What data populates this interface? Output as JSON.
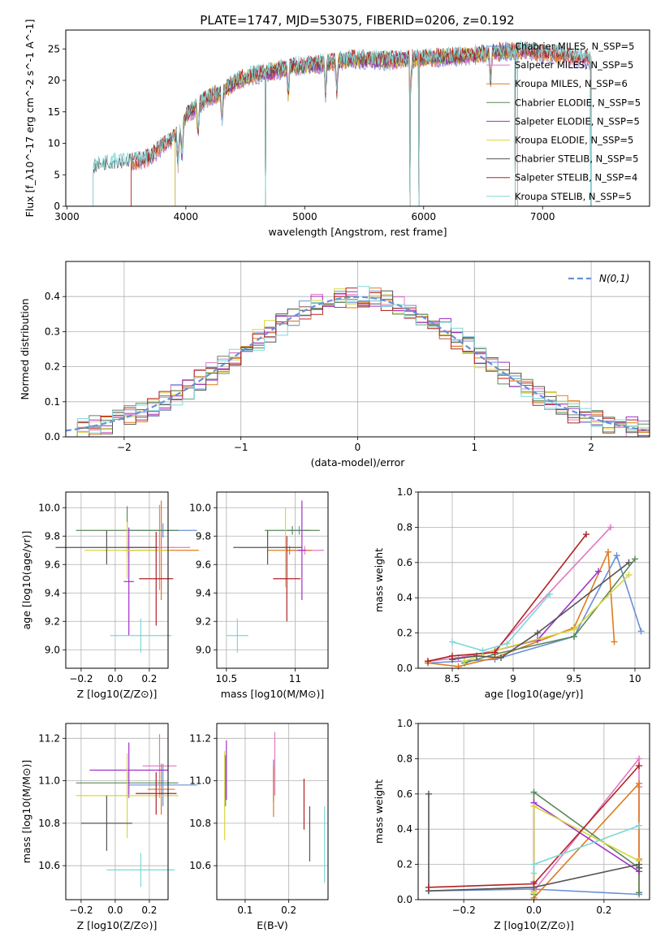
{
  "figure": {
    "title": "PLATE=1747, MJD=53075, FIBERID=0206, z=0.192",
    "colors": {
      "chabrier_miles": "#6a8fd6",
      "salpeter_miles": "#e377c2",
      "kroupa_miles": "#e07b1d",
      "chabrier_elodie": "#5a8a5a",
      "salpeter_elodie": "#a030c8",
      "kroupa_elodie": "#d7d742",
      "chabrier_stelib": "#555555",
      "salpeter_stelib": "#b22222",
      "kroupa_stelib": "#7fd7d7",
      "gaussian": "#6a8fd6"
    }
  },
  "chart_data": [
    {
      "id": "spectrum",
      "type": "line",
      "xlabel": "wavelength [Angstrom, rest frame]",
      "ylabel": "Flux [f_λ10^-17 erg cm^-2 s^-1 A^-1]",
      "xlim": [
        2990,
        7900
      ],
      "ylim": [
        0,
        28
      ],
      "xticks": [
        3000,
        4000,
        5000,
        6000,
        7000
      ],
      "yticks": [
        0,
        5,
        10,
        15,
        20,
        25
      ],
      "legend_position": "right",
      "legend": [
        {
          "label": "Chabrier MILES, N_SSP=5",
          "color": "#6a8fd6"
        },
        {
          "label": "Salpeter MILES, N_SSP=5",
          "color": "#e377c2"
        },
        {
          "label": "Kroupa MILES, N_SSP=6",
          "color": "#e07b1d"
        },
        {
          "label": "Chabrier ELODIE, N_SSP=5",
          "color": "#5a8a5a"
        },
        {
          "label": "Salpeter ELODIE, N_SSP=5",
          "color": "#a030c8"
        },
        {
          "label": "Kroupa ELODIE, N_SSP=5",
          "color": "#d7d742"
        },
        {
          "label": "Chabrier STELIB, N_SSP=5",
          "color": "#555555"
        },
        {
          "label": "Salpeter STELIB, N_SSP=4",
          "color": "#b22222"
        },
        {
          "label": "Kroupa STELIB, N_SSP=5",
          "color": "#7fd7d7"
        }
      ],
      "continuum": {
        "x": [
          3220,
          3300,
          3400,
          3500,
          3600,
          3700,
          3800,
          3900,
          3950,
          4000,
          4100,
          4200,
          4300,
          4400,
          4500,
          4600,
          4700,
          4800,
          4900,
          5000,
          5200,
          5400,
          5600,
          5800,
          6000,
          6200,
          6400,
          6600,
          6800,
          7000,
          7200,
          7400,
          7600
        ],
        "y": [
          6.0,
          6.6,
          6.9,
          7.0,
          7.2,
          7.8,
          9.5,
          11.0,
          11.5,
          14.5,
          16.0,
          17.5,
          18.0,
          19.5,
          20.5,
          21.0,
          21.3,
          21.8,
          22.2,
          22.3,
          22.8,
          23.4,
          23.2,
          23.3,
          23.5,
          23.7,
          24.0,
          24.5,
          24.8,
          24.4,
          24.0,
          23.3,
          22.5
        ]
      },
      "model_ranges": [
        {
          "name": "Chabrier MILES",
          "color": "#6a8fd6",
          "start": 3540,
          "end": 7410
        },
        {
          "name": "Salpeter MILES",
          "color": "#e377c2",
          "start": 3540,
          "end": 7410
        },
        {
          "name": "Kroupa MILES",
          "color": "#e07b1d",
          "start": 3540,
          "end": 7410
        },
        {
          "name": "Chabrier ELODIE",
          "color": "#5a8a5a",
          "start": 3910,
          "end": 6790
        },
        {
          "name": "Salpeter ELODIE",
          "color": "#a030c8",
          "start": 3910,
          "end": 6790
        },
        {
          "name": "Kroupa ELODIE",
          "color": "#d7d742",
          "start": 3910,
          "end": 6790
        },
        {
          "name": "Chabrier STELIB",
          "color": "#555555",
          "start": 3220,
          "end": 7410
        },
        {
          "name": "Salpeter STELIB",
          "color": "#b22222",
          "start": 3540,
          "end": 7410
        },
        {
          "name": "Kroupa STELIB",
          "color": "#7fd7d7",
          "start": 3220,
          "end": 7410
        }
      ],
      "dips": [
        4670,
        5885,
        5960,
        6770,
        7405
      ],
      "absorption": [
        3934,
        3968,
        4102,
        4304,
        4861,
        5175,
        5270,
        5890,
        6563
      ]
    },
    {
      "id": "residuals",
      "type": "histogram",
      "xlabel": "(data-model)/error",
      "ylabel": "Normed distribution",
      "xlim": [
        -2.5,
        2.5
      ],
      "ylim": [
        0,
        0.5
      ],
      "xticks": [
        -2,
        -1,
        0,
        1,
        2
      ],
      "xtick_labels": [
        "−2",
        "−1",
        "0",
        "1",
        "2"
      ],
      "yticks": [
        0.0,
        0.1,
        0.2,
        0.3,
        0.4
      ],
      "grid": true,
      "legend_position": "top-right",
      "gaussian_label": "N(0,1)",
      "bin_width": 0.1,
      "bin_start": -2.5,
      "series_offsets": [
        0.0,
        0.025,
        -0.02,
        0.015,
        -0.03,
        0.03,
        -0.01,
        0.02,
        -0.025
      ]
    },
    {
      "id": "age_vs_Z",
      "type": "errorbar",
      "xlabel": "Z [log10(Z/Z⊙)]",
      "ylabel": "age [log10(age/yr)]",
      "xlim": [
        -0.29,
        0.31
      ],
      "ylim": [
        8.87,
        10.11
      ],
      "xticks": [
        -0.2,
        0.0,
        0.2
      ],
      "xtick_labels": [
        "−0.2",
        "0.0",
        "0.2"
      ],
      "yticks": [
        9.0,
        9.2,
        9.4,
        9.6,
        9.8,
        10.0
      ],
      "grid": true,
      "points": [
        {
          "x": 0.28,
          "y": 9.84,
          "xerr": 0.2,
          "yerr": 0.05,
          "color": "#6a8fd6"
        },
        {
          "x": 0.26,
          "y": 9.72,
          "xerr": 0.18,
          "yerr": 0.3,
          "color": "#e377c2"
        },
        {
          "x": 0.27,
          "y": 9.7,
          "xerr": 0.22,
          "yerr": 0.35,
          "color": "#e07b1d"
        },
        {
          "x": 0.07,
          "y": 9.84,
          "xerr": 0.3,
          "yerr": 0.17,
          "color": "#5a8a5a"
        },
        {
          "x": 0.08,
          "y": 9.48,
          "xerr": 0.03,
          "yerr": 0.38,
          "color": "#a030c8"
        },
        {
          "x": 0.07,
          "y": 9.7,
          "xerr": 0.25,
          "yerr": 0.2,
          "color": "#d7d742"
        },
        {
          "x": -0.05,
          "y": 9.72,
          "xerr": 0.3,
          "yerr": 0.12,
          "color": "#555555"
        },
        {
          "x": 0.24,
          "y": 9.5,
          "xerr": 0.1,
          "yerr": 0.33,
          "color": "#b22222"
        },
        {
          "x": 0.15,
          "y": 9.1,
          "xerr": 0.18,
          "yerr": 0.12,
          "color": "#7fd7d7"
        }
      ]
    },
    {
      "id": "age_vs_mass",
      "type": "errorbar",
      "xlabel": "mass [log10(M/M⊙)]",
      "ylabel": "",
      "xlim": [
        10.43,
        11.24
      ],
      "ylim": [
        8.87,
        10.11
      ],
      "xticks": [
        10.5,
        11.0
      ],
      "yticks": [
        9.0,
        9.2,
        9.4,
        9.6,
        9.8,
        10.0
      ],
      "grid": true,
      "points": [
        {
          "x": 11.03,
          "y": 9.84,
          "xerr": 0.08,
          "yerr": 0.03,
          "color": "#6a8fd6"
        },
        {
          "x": 11.07,
          "y": 9.7,
          "xerr": 0.14,
          "yerr": 0.03,
          "color": "#e377c2"
        },
        {
          "x": 10.96,
          "y": 9.7,
          "xerr": 0.16,
          "yerr": 0.03,
          "color": "#e07b1d"
        },
        {
          "x": 10.98,
          "y": 9.84,
          "xerr": 0.2,
          "yerr": 0.03,
          "color": "#5a8a5a"
        },
        {
          "x": 11.05,
          "y": 9.7,
          "xerr": 0.03,
          "yerr": 0.35,
          "color": "#a030c8"
        },
        {
          "x": 10.93,
          "y": 9.72,
          "xerr": 0.03,
          "yerr": 0.28,
          "color": "#d7d742"
        },
        {
          "x": 10.8,
          "y": 9.72,
          "xerr": 0.25,
          "yerr": 0.12,
          "color": "#555555"
        },
        {
          "x": 10.94,
          "y": 9.5,
          "xerr": 0.1,
          "yerr": 0.3,
          "color": "#b22222"
        },
        {
          "x": 10.58,
          "y": 9.1,
          "xerr": 0.08,
          "yerr": 0.12,
          "color": "#7fd7d7"
        }
      ]
    },
    {
      "id": "mass_weight_vs_age",
      "type": "line",
      "xlabel": "age [log10(age/yr)]",
      "ylabel": "mass weight",
      "xlim": [
        8.22,
        10.12
      ],
      "ylim": [
        0,
        1.0
      ],
      "xticks": [
        8.5,
        9.0,
        9.5,
        10.0
      ],
      "yticks": [
        0.0,
        0.2,
        0.4,
        0.6,
        0.8,
        1.0
      ],
      "grid": true,
      "series": [
        {
          "color": "#6a8fd6",
          "x": [
            8.3,
            8.85,
            9.5,
            9.85,
            10.05
          ],
          "y": [
            0.03,
            0.05,
            0.18,
            0.64,
            0.21
          ]
        },
        {
          "color": "#e377c2",
          "x": [
            8.3,
            8.55,
            8.85,
            9.8
          ],
          "y": [
            0.04,
            0.06,
            0.1,
            0.8
          ]
        },
        {
          "color": "#e07b1d",
          "x": [
            8.3,
            8.55,
            8.85,
            9.5,
            9.78,
            9.83
          ],
          "y": [
            0.03,
            0.01,
            0.06,
            0.23,
            0.66,
            0.15
          ]
        },
        {
          "color": "#5a8a5a",
          "x": [
            8.6,
            8.85,
            9.5,
            10.0
          ],
          "y": [
            0.03,
            0.08,
            0.18,
            0.62
          ]
        },
        {
          "color": "#a030c8",
          "x": [
            8.85,
            9.2,
            9.7
          ],
          "y": [
            0.1,
            0.16,
            0.55
          ]
        },
        {
          "color": "#d7d742",
          "x": [
            8.6,
            8.85,
            9.5,
            9.95
          ],
          "y": [
            0.04,
            0.1,
            0.22,
            0.53
          ]
        },
        {
          "color": "#555555",
          "x": [
            8.5,
            8.7,
            8.9,
            9.2,
            9.95
          ],
          "y": [
            0.05,
            0.07,
            0.06,
            0.2,
            0.6
          ]
        },
        {
          "color": "#b22222",
          "x": [
            8.3,
            8.5,
            8.85,
            9.6
          ],
          "y": [
            0.04,
            0.07,
            0.09,
            0.76
          ]
        },
        {
          "color": "#7fd7d7",
          "x": [
            8.5,
            8.75,
            8.95,
            9.3
          ],
          "y": [
            0.15,
            0.1,
            0.14,
            0.42
          ]
        }
      ]
    },
    {
      "id": "mass_vs_Z",
      "type": "errorbar",
      "xlabel": "Z [log10(Z/Z⊙)]",
      "ylabel": "mass [log10(M/M⊙)]",
      "xlim": [
        -0.29,
        0.31
      ],
      "ylim": [
        10.44,
        11.27
      ],
      "xticks": [
        -0.2,
        0.0,
        0.2
      ],
      "xtick_labels": [
        "−0.2",
        "0.0",
        "0.2"
      ],
      "yticks": [
        10.6,
        10.8,
        11.0,
        11.2
      ],
      "grid": true,
      "points": [
        {
          "x": 0.28,
          "y": 10.98,
          "xerr": 0.2,
          "yerr": 0.1,
          "color": "#6a8fd6"
        },
        {
          "x": 0.26,
          "y": 11.07,
          "xerr": 0.1,
          "yerr": 0.15,
          "color": "#e377c2"
        },
        {
          "x": 0.27,
          "y": 10.96,
          "xerr": 0.08,
          "yerr": 0.12,
          "color": "#e07b1d"
        },
        {
          "x": 0.07,
          "y": 10.99,
          "xerr": 0.3,
          "yerr": 0.07,
          "color": "#5a8a5a"
        },
        {
          "x": 0.08,
          "y": 11.05,
          "xerr": 0.23,
          "yerr": 0.13,
          "color": "#a030c8"
        },
        {
          "x": 0.07,
          "y": 10.93,
          "xerr": 0.3,
          "yerr": 0.2,
          "color": "#d7d742"
        },
        {
          "x": -0.05,
          "y": 10.8,
          "xerr": 0.15,
          "yerr": 0.13,
          "color": "#555555"
        },
        {
          "x": 0.24,
          "y": 10.94,
          "xerr": 0.12,
          "yerr": 0.1,
          "color": "#b22222"
        },
        {
          "x": 0.15,
          "y": 10.58,
          "xerr": 0.2,
          "yerr": 0.08,
          "color": "#7fd7d7"
        }
      ]
    },
    {
      "id": "mass_vs_ebv",
      "type": "errorbar",
      "xlabel": "E(B-V)",
      "ylabel": "",
      "xlim": [
        0.035,
        0.29
      ],
      "ylim": [
        10.44,
        11.27
      ],
      "xticks": [
        0.1,
        0.2
      ],
      "yticks": [
        10.6,
        10.8,
        11.0,
        11.2
      ],
      "grid": true,
      "points": [
        {
          "x": 0.165,
          "y": 11.0,
          "xerr": 0.0,
          "yerr": 0.1,
          "color": "#6a8fd6"
        },
        {
          "x": 0.168,
          "y": 11.08,
          "xerr": 0.0,
          "yerr": 0.15,
          "color": "#e377c2"
        },
        {
          "x": 0.165,
          "y": 10.95,
          "xerr": 0.0,
          "yerr": 0.12,
          "color": "#e07b1d"
        },
        {
          "x": 0.055,
          "y": 11.0,
          "xerr": 0.0,
          "yerr": 0.12,
          "color": "#5a8a5a"
        },
        {
          "x": 0.057,
          "y": 11.05,
          "xerr": 0.0,
          "yerr": 0.14,
          "color": "#a030c8"
        },
        {
          "x": 0.053,
          "y": 10.93,
          "xerr": 0.0,
          "yerr": 0.21,
          "color": "#d7d742"
        },
        {
          "x": 0.248,
          "y": 10.75,
          "xerr": 0.0,
          "yerr": 0.13,
          "color": "#555555"
        },
        {
          "x": 0.235,
          "y": 10.89,
          "xerr": 0.0,
          "yerr": 0.12,
          "color": "#b22222"
        },
        {
          "x": 0.282,
          "y": 10.7,
          "xerr": 0.0,
          "yerr": 0.18,
          "color": "#7fd7d7"
        }
      ]
    },
    {
      "id": "mass_weight_vs_Z",
      "type": "line",
      "xlabel": "Z [log10(Z/Z⊙)]",
      "ylabel": "mass weight",
      "xlim": [
        -0.33,
        0.33
      ],
      "ylim": [
        0,
        1.0
      ],
      "xticks": [
        -0.2,
        0.0,
        0.2
      ],
      "xtick_labels": [
        "−0.2",
        "0.0",
        "0.2"
      ],
      "yticks": [
        0.0,
        0.2,
        0.4,
        0.6,
        0.8,
        1.0
      ],
      "grid": true,
      "series": [
        {
          "color": "#6a8fd6",
          "x": [
            -0.3,
            0.0,
            0.3
          ],
          "y": [
            0.05,
            0.06,
            0.03
          ]
        },
        {
          "color": "#e377c2",
          "x": [
            0.0,
            0.3,
            0.3,
            0.3
          ],
          "y": [
            0.05,
            0.8,
            0.64,
            0.04
          ]
        },
        {
          "color": "#e07b1d",
          "x": [
            0.0,
            0.3,
            0.3,
            0.3
          ],
          "y": [
            0.01,
            0.66,
            0.23,
            0.04
          ]
        },
        {
          "color": "#5a8a5a",
          "x": [
            0.0,
            0.0,
            0.3,
            0.3
          ],
          "y": [
            0.03,
            0.61,
            0.18,
            0.04
          ]
        },
        {
          "color": "#a030c8",
          "x": [
            0.0,
            0.0,
            0.3
          ],
          "y": [
            0.1,
            0.55,
            0.16
          ]
        },
        {
          "color": "#d7d742",
          "x": [
            0.0,
            0.0,
            0.3
          ],
          "y": [
            0.04,
            0.53,
            0.22
          ]
        },
        {
          "color": "#555555",
          "x": [
            -0.3,
            -0.3,
            0.0,
            0.3,
            0.3
          ],
          "y": [
            0.6,
            0.05,
            0.07,
            0.2,
            0.18
          ]
        },
        {
          "color": "#b22222",
          "x": [
            -0.3,
            0.0,
            0.3
          ],
          "y": [
            0.07,
            0.09,
            0.76
          ]
        },
        {
          "color": "#7fd7d7",
          "x": [
            0.0,
            0.0,
            0.3
          ],
          "y": [
            0.15,
            0.2,
            0.42
          ]
        }
      ]
    }
  ]
}
